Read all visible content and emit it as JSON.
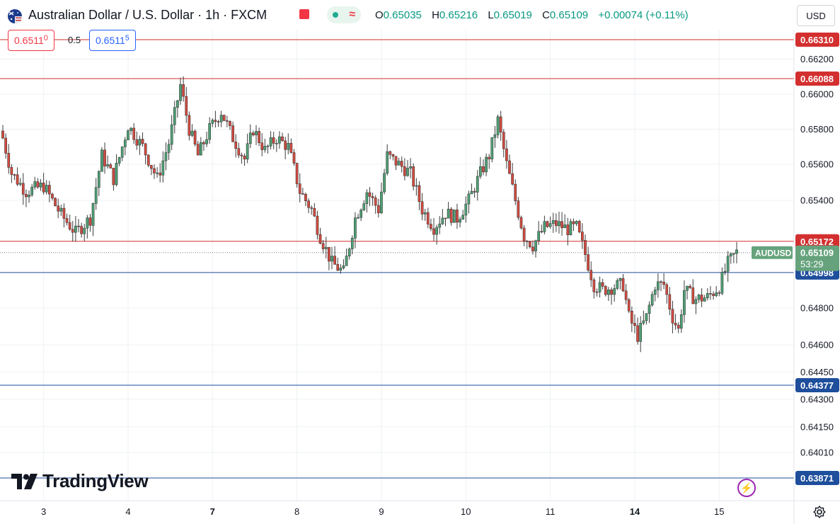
{
  "header": {
    "symbol_title": "Australian Dollar / U.S. Dollar · 1h · FXCM",
    "ohlc": [
      {
        "key": "O",
        "value": "0.65035"
      },
      {
        "key": "H",
        "value": "0.65216"
      },
      {
        "key": "L",
        "value": "0.65019"
      },
      {
        "key": "C",
        "value": "0.65109"
      }
    ],
    "change": "+0.00074 (+0.11%)",
    "currency": "USD"
  },
  "quote": {
    "bid_main": "0.6511",
    "bid_small": "0",
    "spread": "0.5",
    "ask_main": "0.6511",
    "ask_small": "5"
  },
  "branding": {
    "logo_text": "TradingView"
  },
  "colors": {
    "up": "#4f9f75",
    "down": "#d24b40",
    "wick": "#3b3b3b",
    "resistance": "#d32f2f",
    "support": "#1e4e9c",
    "current": "#66a37d",
    "grid": "#eef0f3",
    "axis_text": "#131722"
  },
  "chart_data": {
    "type": "candlestick",
    "symbol": "AUDUSD",
    "timeframe": "1h",
    "current_price": "0.65109",
    "countdown": "53:29",
    "y_ticks": [
      "0.66200",
      "0.66000",
      "0.65800",
      "0.65600",
      "0.65400",
      "0.64800",
      "0.64600",
      "0.64450",
      "0.64300",
      "0.64150",
      "0.64010"
    ],
    "x_ticks": [
      {
        "label": "3",
        "bar": 14
      },
      {
        "label": "4",
        "bar": 43
      },
      {
        "label": "7",
        "bar": 72
      },
      {
        "label": "8",
        "bar": 101
      },
      {
        "label": "9",
        "bar": 130
      },
      {
        "label": "10",
        "bar": 159
      },
      {
        "label": "11",
        "bar": 188
      },
      {
        "label": "14",
        "bar": 217
      },
      {
        "label": "15",
        "bar": 246
      }
    ],
    "levels": [
      {
        "price": 0.6631,
        "label": "0.66310",
        "kind": "resistance"
      },
      {
        "price": 0.66088,
        "label": "0.66088",
        "kind": "resistance"
      },
      {
        "price": 0.65172,
        "label": "0.65172",
        "kind": "resistance"
      },
      {
        "price": 0.64998,
        "label": "0.64998",
        "kind": "support"
      },
      {
        "price": 0.64377,
        "label": "0.64377",
        "kind": "support"
      },
      {
        "price": 0.63871,
        "label": "0.63871",
        "kind": "support"
      }
    ],
    "anchors": [
      [
        0,
        0.6575
      ],
      [
        3,
        0.6555
      ],
      [
        8,
        0.6545
      ],
      [
        14,
        0.6548
      ],
      [
        20,
        0.6532
      ],
      [
        25,
        0.6522
      ],
      [
        30,
        0.653
      ],
      [
        34,
        0.6565
      ],
      [
        38,
        0.6552
      ],
      [
        43,
        0.6582
      ],
      [
        48,
        0.657
      ],
      [
        53,
        0.6552
      ],
      [
        57,
        0.6572
      ],
      [
        61,
        0.6605
      ],
      [
        64,
        0.658
      ],
      [
        67,
        0.6565
      ],
      [
        71,
        0.658
      ],
      [
        75,
        0.659
      ],
      [
        79,
        0.6575
      ],
      [
        83,
        0.6563
      ],
      [
        86,
        0.658
      ],
      [
        90,
        0.6568
      ],
      [
        94,
        0.6575
      ],
      [
        98,
        0.657
      ],
      [
        102,
        0.6545
      ],
      [
        106,
        0.6535
      ],
      [
        109,
        0.652
      ],
      [
        113,
        0.6505
      ],
      [
        117,
        0.65
      ],
      [
        121,
        0.653
      ],
      [
        125,
        0.6545
      ],
      [
        129,
        0.6535
      ],
      [
        132,
        0.6565
      ],
      [
        136,
        0.656
      ],
      [
        140,
        0.6555
      ],
      [
        144,
        0.6535
      ],
      [
        148,
        0.6525
      ],
      [
        152,
        0.6533
      ],
      [
        156,
        0.653
      ],
      [
        160,
        0.654
      ],
      [
        164,
        0.6555
      ],
      [
        167,
        0.6565
      ],
      [
        170,
        0.6585
      ],
      [
        173,
        0.656
      ],
      [
        176,
        0.654
      ],
      [
        179,
        0.652
      ],
      [
        182,
        0.6515
      ],
      [
        186,
        0.6525
      ],
      [
        190,
        0.6527
      ],
      [
        194,
        0.6524
      ],
      [
        197,
        0.6525
      ],
      [
        200,
        0.651
      ],
      [
        203,
        0.6493
      ],
      [
        206,
        0.649
      ],
      [
        210,
        0.6492
      ],
      [
        213,
        0.6493
      ],
      [
        215,
        0.6475
      ],
      [
        218,
        0.6465
      ],
      [
        221,
        0.6475
      ],
      [
        224,
        0.6493
      ],
      [
        227,
        0.6493
      ],
      [
        230,
        0.6475
      ],
      [
        232,
        0.6468
      ],
      [
        234,
        0.649
      ],
      [
        238,
        0.6485
      ],
      [
        242,
        0.6486
      ],
      [
        246,
        0.6492
      ],
      [
        249,
        0.6505
      ],
      [
        252,
        0.6511
      ]
    ]
  }
}
